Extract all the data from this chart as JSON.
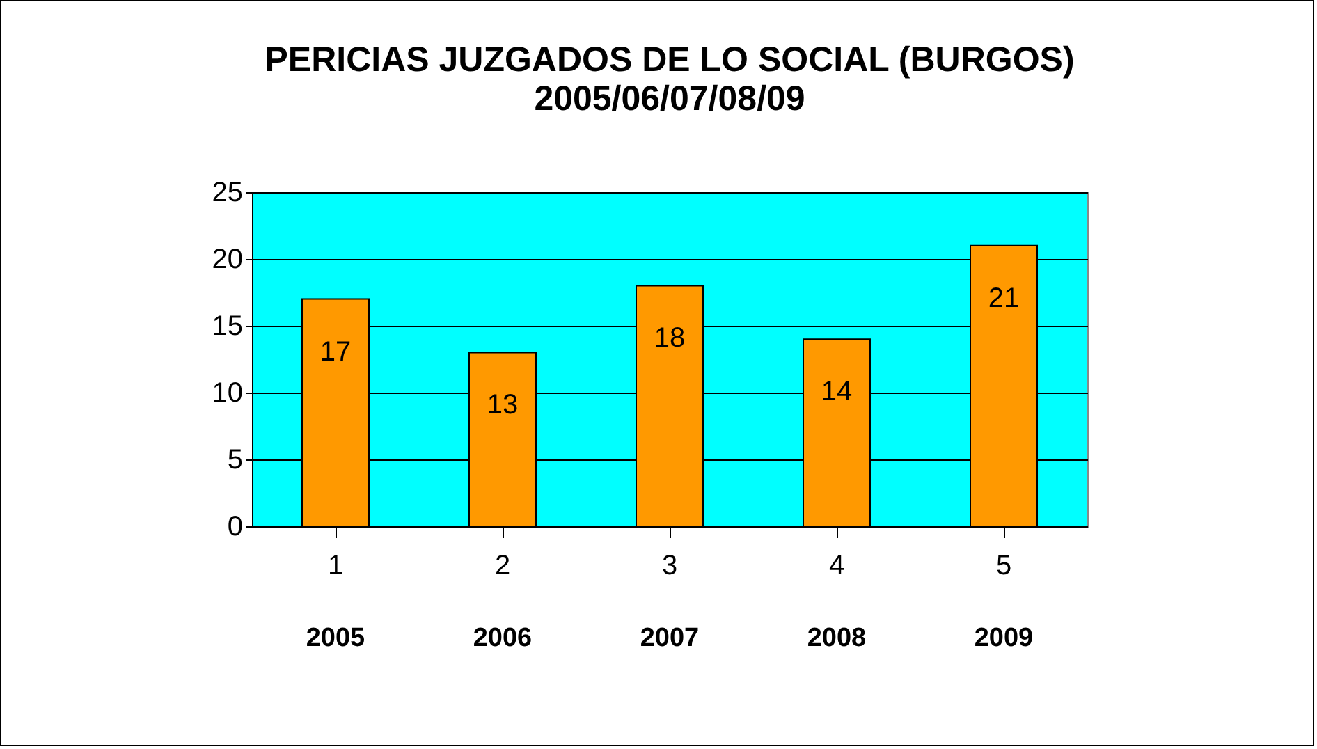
{
  "chart_data": {
    "type": "bar",
    "title": "PERICIAS JUZGADOS DE LO SOCIAL (BURGOS)",
    "subtitle": "2005/06/07/08/09",
    "categories": [
      "1",
      "2",
      "3",
      "4",
      "5"
    ],
    "values": [
      17,
      13,
      18,
      14,
      21
    ],
    "color": "#ff9900",
    "ylim": [
      0,
      25
    ],
    "yticks": [
      0,
      5,
      10,
      15,
      20,
      25
    ],
    "grid": "y",
    "data_labels": true,
    "annotations": [
      "2005",
      "2006",
      "2007",
      "2008",
      "2009"
    ]
  }
}
